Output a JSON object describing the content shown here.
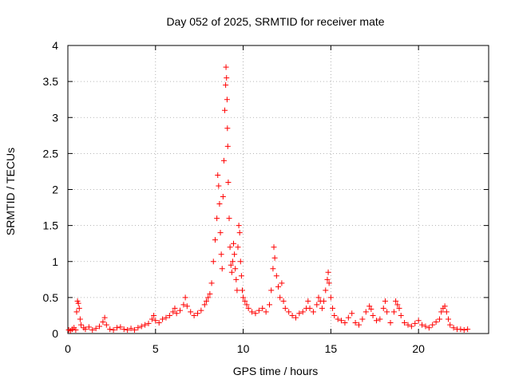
{
  "chart_data": {
    "type": "scatter",
    "title": "Day 052 of 2025, SRMTID for receiver mate",
    "xlabel": "GPS time / hours",
    "ylabel": "SRMTID / TECUs",
    "xlim": [
      0,
      24
    ],
    "ylim": [
      0,
      4
    ],
    "x_ticks": [
      0,
      5,
      10,
      15,
      20
    ],
    "x_tick_labels": [
      "0",
      "5",
      "10",
      "15",
      "20"
    ],
    "y_ticks": [
      0,
      0.5,
      1,
      1.5,
      2,
      2.5,
      3,
      3.5,
      4
    ],
    "y_tick_labels": [
      "0",
      "0.5",
      "1",
      "1.5",
      "2",
      "2.5",
      "3",
      "3.5",
      "4"
    ],
    "grid": true,
    "marker": "+",
    "color": "#ff0000",
    "series": [
      {
        "name": "SRMTID",
        "points": [
          [
            0.05,
            0.05
          ],
          [
            0.15,
            0.04
          ],
          [
            0.25,
            0.06
          ],
          [
            0.35,
            0.08
          ],
          [
            0.45,
            0.05
          ],
          [
            0.5,
            0.3
          ],
          [
            0.55,
            0.45
          ],
          [
            0.6,
            0.42
          ],
          [
            0.65,
            0.35
          ],
          [
            0.7,
            0.2
          ],
          [
            0.75,
            0.12
          ],
          [
            0.9,
            0.08
          ],
          [
            1.0,
            0.06
          ],
          [
            1.2,
            0.09
          ],
          [
            1.4,
            0.05
          ],
          [
            1.6,
            0.07
          ],
          [
            1.8,
            0.1
          ],
          [
            2.0,
            0.16
          ],
          [
            2.1,
            0.22
          ],
          [
            2.2,
            0.12
          ],
          [
            2.4,
            0.06
          ],
          [
            2.6,
            0.05
          ],
          [
            2.8,
            0.08
          ],
          [
            3.0,
            0.09
          ],
          [
            3.2,
            0.06
          ],
          [
            3.4,
            0.05
          ],
          [
            3.6,
            0.07
          ],
          [
            3.8,
            0.05
          ],
          [
            4.0,
            0.08
          ],
          [
            4.2,
            0.1
          ],
          [
            4.4,
            0.12
          ],
          [
            4.6,
            0.14
          ],
          [
            4.8,
            0.2
          ],
          [
            4.9,
            0.25
          ],
          [
            5.0,
            0.18
          ],
          [
            5.2,
            0.15
          ],
          [
            5.4,
            0.2
          ],
          [
            5.6,
            0.22
          ],
          [
            5.8,
            0.25
          ],
          [
            6.0,
            0.3
          ],
          [
            6.1,
            0.35
          ],
          [
            6.2,
            0.28
          ],
          [
            6.4,
            0.32
          ],
          [
            6.6,
            0.4
          ],
          [
            6.7,
            0.5
          ],
          [
            6.8,
            0.38
          ],
          [
            7.0,
            0.3
          ],
          [
            7.2,
            0.25
          ],
          [
            7.4,
            0.28
          ],
          [
            7.6,
            0.32
          ],
          [
            7.8,
            0.4
          ],
          [
            7.9,
            0.45
          ],
          [
            8.0,
            0.5
          ],
          [
            8.1,
            0.55
          ],
          [
            8.2,
            0.7
          ],
          [
            8.3,
            1.0
          ],
          [
            8.4,
            1.3
          ],
          [
            8.5,
            1.6
          ],
          [
            8.55,
            2.2
          ],
          [
            8.6,
            2.05
          ],
          [
            8.65,
            1.8
          ],
          [
            8.7,
            1.4
          ],
          [
            8.75,
            1.1
          ],
          [
            8.8,
            0.9
          ],
          [
            8.85,
            1.9
          ],
          [
            8.9,
            2.4
          ],
          [
            8.95,
            3.1
          ],
          [
            9.0,
            3.45
          ],
          [
            9.02,
            3.7
          ],
          [
            9.05,
            3.55
          ],
          [
            9.08,
            3.25
          ],
          [
            9.1,
            2.85
          ],
          [
            9.12,
            2.6
          ],
          [
            9.15,
            2.1
          ],
          [
            9.2,
            1.6
          ],
          [
            9.25,
            1.2
          ],
          [
            9.3,
            0.95
          ],
          [
            9.35,
            0.85
          ],
          [
            9.4,
            1.0
          ],
          [
            9.45,
            1.25
          ],
          [
            9.5,
            1.1
          ],
          [
            9.55,
            0.9
          ],
          [
            9.6,
            0.75
          ],
          [
            9.65,
            0.6
          ],
          [
            9.7,
            1.2
          ],
          [
            9.75,
            1.5
          ],
          [
            9.8,
            1.4
          ],
          [
            9.85,
            1.0
          ],
          [
            9.9,
            0.8
          ],
          [
            9.95,
            0.6
          ],
          [
            10.0,
            0.5
          ],
          [
            10.1,
            0.45
          ],
          [
            10.2,
            0.4
          ],
          [
            10.3,
            0.35
          ],
          [
            10.5,
            0.3
          ],
          [
            10.7,
            0.28
          ],
          [
            10.9,
            0.32
          ],
          [
            11.1,
            0.35
          ],
          [
            11.3,
            0.3
          ],
          [
            11.5,
            0.4
          ],
          [
            11.6,
            0.6
          ],
          [
            11.7,
            0.9
          ],
          [
            11.75,
            1.2
          ],
          [
            11.8,
            1.05
          ],
          [
            11.9,
            0.8
          ],
          [
            12.0,
            0.65
          ],
          [
            12.1,
            0.5
          ],
          [
            12.2,
            0.7
          ],
          [
            12.3,
            0.45
          ],
          [
            12.4,
            0.35
          ],
          [
            12.6,
            0.3
          ],
          [
            12.8,
            0.25
          ],
          [
            13.0,
            0.22
          ],
          [
            13.2,
            0.28
          ],
          [
            13.4,
            0.3
          ],
          [
            13.6,
            0.35
          ],
          [
            13.7,
            0.45
          ],
          [
            13.8,
            0.35
          ],
          [
            14.0,
            0.3
          ],
          [
            14.2,
            0.4
          ],
          [
            14.3,
            0.5
          ],
          [
            14.4,
            0.45
          ],
          [
            14.5,
            0.35
          ],
          [
            14.6,
            0.45
          ],
          [
            14.7,
            0.6
          ],
          [
            14.8,
            0.75
          ],
          [
            14.85,
            0.85
          ],
          [
            14.9,
            0.7
          ],
          [
            15.0,
            0.5
          ],
          [
            15.1,
            0.35
          ],
          [
            15.2,
            0.25
          ],
          [
            15.4,
            0.2
          ],
          [
            15.6,
            0.18
          ],
          [
            15.8,
            0.15
          ],
          [
            16.0,
            0.22
          ],
          [
            16.2,
            0.28
          ],
          [
            16.4,
            0.15
          ],
          [
            16.6,
            0.12
          ],
          [
            16.8,
            0.2
          ],
          [
            17.0,
            0.3
          ],
          [
            17.2,
            0.38
          ],
          [
            17.3,
            0.34
          ],
          [
            17.4,
            0.25
          ],
          [
            17.6,
            0.18
          ],
          [
            17.8,
            0.2
          ],
          [
            18.0,
            0.35
          ],
          [
            18.1,
            0.45
          ],
          [
            18.2,
            0.3
          ],
          [
            18.4,
            0.15
          ],
          [
            18.6,
            0.3
          ],
          [
            18.7,
            0.45
          ],
          [
            18.8,
            0.4
          ],
          [
            18.9,
            0.35
          ],
          [
            19.0,
            0.25
          ],
          [
            19.2,
            0.15
          ],
          [
            19.4,
            0.12
          ],
          [
            19.6,
            0.1
          ],
          [
            19.8,
            0.14
          ],
          [
            20.0,
            0.18
          ],
          [
            20.2,
            0.12
          ],
          [
            20.4,
            0.1
          ],
          [
            20.6,
            0.08
          ],
          [
            20.8,
            0.12
          ],
          [
            21.0,
            0.16
          ],
          [
            21.2,
            0.2
          ],
          [
            21.3,
            0.3
          ],
          [
            21.4,
            0.35
          ],
          [
            21.5,
            0.38
          ],
          [
            21.6,
            0.3
          ],
          [
            21.7,
            0.2
          ],
          [
            21.8,
            0.12
          ],
          [
            22.0,
            0.08
          ],
          [
            22.2,
            0.06
          ],
          [
            22.4,
            0.06
          ],
          [
            22.6,
            0.05
          ],
          [
            22.8,
            0.06
          ]
        ]
      }
    ]
  }
}
